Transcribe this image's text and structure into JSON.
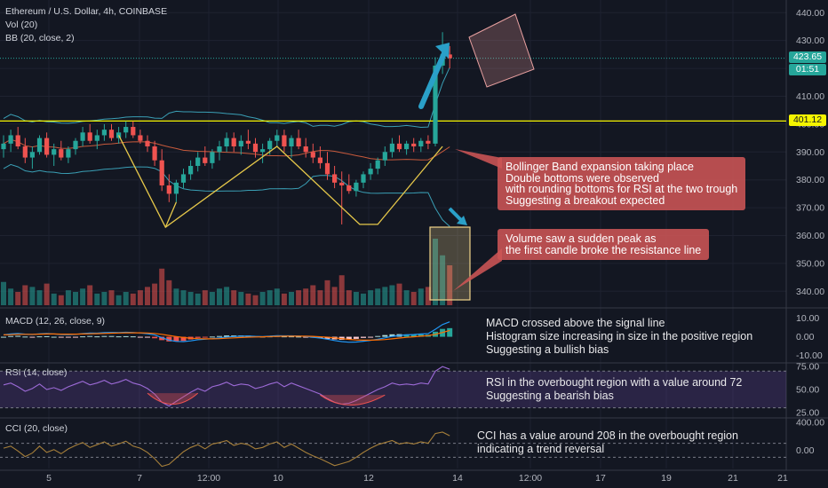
{
  "header": {
    "symbol": "Ethereum / U.S. Dollar, 4h, COINBASE",
    "vol_label": "Vol (20)",
    "bb_label": "BB (20, close, 2)"
  },
  "price_tags": {
    "last_price": "423.65",
    "countdown": "01:51",
    "resistance": "401.12",
    "last_color": "#26a69a",
    "resistance_color": "#f5f500"
  },
  "callouts": {
    "bollinger": "Bollinger Band expansion taking place\nDouble bottoms were observed\nwith rounding bottoms for RSI at the two trough\nSuggesting a breakout expected",
    "volume": "Volume saw a sudden peak as\nthe first candle broke the resistance line"
  },
  "notes": {
    "macd": "MACD crossed above the signal line\nHistogram size increasing in size in the positive region\nSuggesting a bullish bias",
    "rsi": "RSI in the overbought region with a value around 72\nSuggesting a bearish bias",
    "cci": "CCI has a value around 208 in the overbought region\nindicating a trend reversal"
  },
  "panes": {
    "macd_label": "MACD (12, 26, close, 9)",
    "rsi_label": "RSI (14, close)",
    "cci_label": "CCI (20, close)"
  },
  "colors": {
    "up": "#26a69a",
    "down": "#ef5350",
    "bb_band": "#3a9fb5",
    "bb_basis": "#c85a3c",
    "pattern_line": "#e6c84a",
    "resistance": "#f5f500",
    "macd_line": "#2196f3",
    "signal_line": "#ff6d00",
    "rsi_line": "#9c6ad6",
    "cci_line": "#a67f3a",
    "arrow": "#2aa0c8",
    "box": "#f0d48a"
  },
  "chart_data": [
    {
      "type": "candlestick",
      "title": "Ethereum / U.S. Dollar, 4h, COINBASE",
      "x_ticks": [
        "5",
        "7",
        "12:00",
        "10",
        "12",
        "14",
        "12:00",
        "17",
        "19",
        "21"
      ],
      "y_ticks": [
        "340.00",
        "350.00",
        "360.00",
        "370.00",
        "380.00",
        "390.00",
        "400.00",
        "410.00",
        "420.00",
        "430.00",
        "440.00"
      ],
      "ylim": [
        335,
        442
      ],
      "last_price": 423.65,
      "resistance": 401.12,
      "ohlc": [
        [
          391,
          396,
          388,
          393
        ],
        [
          393,
          398,
          390,
          396
        ],
        [
          396,
          399,
          391,
          392
        ],
        [
          392,
          395,
          386,
          388
        ],
        [
          388,
          392,
          384,
          390
        ],
        [
          390,
          396,
          389,
          395
        ],
        [
          395,
          397,
          388,
          389
        ],
        [
          389,
          393,
          385,
          391
        ],
        [
          391,
          394,
          387,
          388
        ],
        [
          388,
          392,
          386,
          391
        ],
        [
          391,
          395,
          389,
          394
        ],
        [
          394,
          399,
          392,
          397
        ],
        [
          397,
          400,
          393,
          394
        ],
        [
          394,
          398,
          391,
          396
        ],
        [
          396,
          400,
          394,
          398
        ],
        [
          398,
          400,
          394,
          395
        ],
        [
          395,
          399,
          393,
          397
        ],
        [
          397,
          401,
          395,
          399
        ],
        [
          399,
          401,
          395,
          396
        ],
        [
          396,
          398,
          393,
          394
        ],
        [
          394,
          396,
          390,
          392
        ],
        [
          392,
          394,
          385,
          387
        ],
        [
          387,
          391,
          376,
          378
        ],
        [
          378,
          382,
          372,
          375
        ],
        [
          375,
          380,
          372,
          379
        ],
        [
          379,
          384,
          377,
          382
        ],
        [
          382,
          387,
          380,
          385
        ],
        [
          385,
          390,
          383,
          388
        ],
        [
          388,
          392,
          385,
          386
        ],
        [
          386,
          391,
          384,
          390
        ],
        [
          390,
          394,
          387,
          392
        ],
        [
          392,
          397,
          390,
          395
        ],
        [
          395,
          397,
          390,
          392
        ],
        [
          392,
          396,
          389,
          394
        ],
        [
          394,
          398,
          391,
          393
        ],
        [
          393,
          395,
          388,
          390
        ],
        [
          390,
          393,
          386,
          391
        ],
        [
          391,
          395,
          389,
          394
        ],
        [
          394,
          398,
          392,
          396
        ],
        [
          396,
          398,
          390,
          392
        ],
        [
          392,
          396,
          388,
          395
        ],
        [
          395,
          398,
          391,
          392
        ],
        [
          392,
          395,
          388,
          390
        ],
        [
          390,
          393,
          386,
          388
        ],
        [
          388,
          392,
          384,
          386
        ],
        [
          386,
          390,
          380,
          382
        ],
        [
          382,
          385,
          377,
          379
        ],
        [
          379,
          383,
          364,
          378
        ],
        [
          378,
          382,
          375,
          376
        ],
        [
          376,
          380,
          374,
          379
        ],
        [
          379,
          383,
          377,
          382
        ],
        [
          382,
          386,
          380,
          384
        ],
        [
          384,
          388,
          382,
          387
        ],
        [
          387,
          392,
          385,
          390
        ],
        [
          390,
          395,
          388,
          393
        ],
        [
          393,
          396,
          390,
          391
        ],
        [
          391,
          394,
          389,
          393
        ],
        [
          393,
          395,
          390,
          392
        ],
        [
          392,
          395,
          390,
          394
        ],
        [
          394,
          396,
          391,
          393
        ],
        [
          393,
          424,
          392,
          421
        ],
        [
          421,
          433,
          418,
          425
        ],
        [
          425,
          428,
          420,
          423.65
        ]
      ],
      "volume": [
        14,
        10,
        8,
        12,
        11,
        9,
        13,
        7,
        6,
        9,
        8,
        10,
        12,
        7,
        8,
        9,
        6,
        8,
        7,
        9,
        11,
        13,
        22,
        15,
        10,
        9,
        8,
        7,
        9,
        8,
        10,
        11,
        9,
        8,
        7,
        6,
        8,
        9,
        10,
        7,
        8,
        9,
        10,
        12,
        9,
        15,
        11,
        18,
        9,
        8,
        7,
        9,
        10,
        11,
        12,
        13,
        9,
        8,
        10,
        11,
        40,
        30,
        24
      ]
    },
    {
      "type": "line",
      "title": "MACD (12, 26, close, 9)",
      "y_ticks": [
        "-10.00",
        "0.00",
        "10.00"
      ],
      "ylim": [
        -13,
        14
      ],
      "series": [
        {
          "name": "MACD",
          "values": [
            1,
            1.5,
            1.8,
            1.4,
            1.2,
            1.6,
            1.8,
            1.5,
            1.2,
            1.1,
            1.3,
            1.7,
            2.0,
            1.9,
            2.2,
            2.3,
            2.2,
            2.4,
            2.3,
            2.0,
            1.6,
            1.0,
            -0.5,
            -1.8,
            -2.5,
            -2.6,
            -2.2,
            -1.6,
            -1.3,
            -1.0,
            -0.6,
            -0.1,
            0.1,
            0.3,
            0.4,
            0.2,
            0.1,
            0.3,
            0.6,
            0.5,
            0.5,
            0.4,
            0.1,
            -0.3,
            -0.7,
            -1.3,
            -2.0,
            -2.6,
            -2.9,
            -2.8,
            -2.4,
            -1.9,
            -1.3,
            -0.6,
            0.2,
            0.7,
            1.0,
            1.2,
            1.5,
            1.7,
            4.0,
            6.5,
            8.0
          ]
        },
        {
          "name": "Signal",
          "values": [
            1,
            1.1,
            1.3,
            1.3,
            1.3,
            1.4,
            1.5,
            1.5,
            1.4,
            1.4,
            1.4,
            1.5,
            1.6,
            1.7,
            1.8,
            1.9,
            2.0,
            2.1,
            2.1,
            2.1,
            2.0,
            1.8,
            1.3,
            0.7,
            0.1,
            -0.4,
            -0.8,
            -1.0,
            -1.1,
            -1.1,
            -1.0,
            -0.8,
            -0.6,
            -0.4,
            -0.2,
            -0.1,
            0.0,
            0.1,
            0.2,
            0.3,
            0.3,
            0.3,
            0.3,
            0.2,
            0.0,
            -0.2,
            -0.6,
            -1.0,
            -1.4,
            -1.7,
            -1.8,
            -1.8,
            -1.7,
            -1.5,
            -1.1,
            -0.7,
            -0.3,
            0.0,
            0.3,
            0.6,
            1.3,
            2.3,
            3.4
          ]
        }
      ]
    },
    {
      "type": "line",
      "title": "RSI (14, close)",
      "y_ticks": [
        "25.00",
        "50.00",
        "75.00"
      ],
      "ylim": [
        20,
        78
      ],
      "overbought": 70,
      "oversold": 30,
      "values": [
        55,
        57,
        53,
        48,
        51,
        56,
        50,
        52,
        49,
        53,
        56,
        59,
        55,
        57,
        60,
        56,
        58,
        61,
        57,
        55,
        51,
        45,
        36,
        32,
        37,
        42,
        47,
        51,
        48,
        53,
        55,
        58,
        54,
        56,
        55,
        51,
        53,
        56,
        58,
        53,
        57,
        54,
        51,
        48,
        45,
        40,
        36,
        34,
        35,
        38,
        42,
        46,
        50,
        53,
        57,
        55,
        56,
        55,
        57,
        56,
        70,
        75,
        72
      ]
    },
    {
      "type": "line",
      "title": "CCI (20, close)",
      "y_ticks": [
        "0.00",
        "400.00"
      ],
      "ylim": [
        -260,
        450
      ],
      "overbought": 100,
      "oversold": -100,
      "values": [
        30,
        60,
        -10,
        -90,
        -40,
        60,
        -30,
        10,
        -50,
        20,
        70,
        110,
        40,
        80,
        120,
        60,
        90,
        130,
        60,
        30,
        -30,
        -120,
        -230,
        -200,
        -110,
        -20,
        40,
        80,
        20,
        90,
        110,
        140,
        70,
        100,
        80,
        20,
        40,
        90,
        120,
        40,
        90,
        30,
        -30,
        -80,
        -120,
        -170,
        -220,
        -190,
        -160,
        -100,
        -30,
        30,
        80,
        110,
        140,
        90,
        110,
        90,
        120,
        100,
        240,
        260,
        208
      ]
    }
  ]
}
